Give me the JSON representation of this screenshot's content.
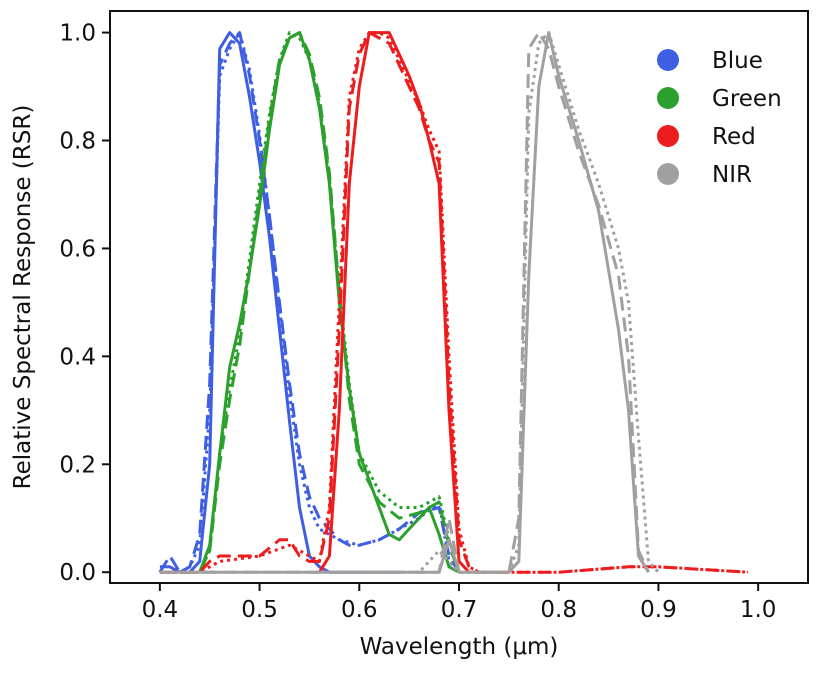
{
  "chart_data": {
    "type": "line",
    "title": "",
    "xlabel": "Wavelength (μm)",
    "ylabel": "Relative Spectral Response (RSR)",
    "xlim": [
      0.35,
      1.05
    ],
    "ylim": [
      -0.02,
      1.04
    ],
    "x_ticks": [
      {
        "value": 0.4,
        "label": "0.4"
      },
      {
        "value": 0.5,
        "label": "0.5"
      },
      {
        "value": 0.6,
        "label": "0.6"
      },
      {
        "value": 0.7,
        "label": "0.7"
      },
      {
        "value": 0.8,
        "label": "0.8"
      },
      {
        "value": 0.9,
        "label": "0.9"
      },
      {
        "value": 1.0,
        "label": "1.0"
      }
    ],
    "y_ticks": [
      {
        "value": 0.0,
        "label": "0.0"
      },
      {
        "value": 0.2,
        "label": "0.2"
      },
      {
        "value": 0.4,
        "label": "0.4"
      },
      {
        "value": 0.6,
        "label": "0.6"
      },
      {
        "value": 0.8,
        "label": "0.8"
      },
      {
        "value": 1.0,
        "label": "1.0"
      }
    ],
    "grid": false,
    "legend_position": "top-right",
    "legend": [
      {
        "label": "Blue",
        "color": "#3f5fe3"
      },
      {
        "label": "Green",
        "color": "#2ca02c"
      },
      {
        "label": "Red",
        "color": "#ee1d1d"
      },
      {
        "label": "NIR",
        "color": "#a0a0a0"
      }
    ],
    "series": [
      {
        "band": "Blue",
        "style": "solid",
        "color": "#3f5fe3",
        "x": [
          0.4,
          0.41,
          0.42,
          0.43,
          0.44,
          0.45,
          0.46,
          0.47,
          0.48,
          0.49,
          0.5,
          0.51,
          0.52,
          0.53,
          0.54,
          0.55,
          0.56,
          0.57,
          0.58,
          0.6,
          0.62,
          0.64
        ],
        "y": [
          0.01,
          0.01,
          0.0,
          0.0,
          0.02,
          0.2,
          0.97,
          1.0,
          0.98,
          0.88,
          0.76,
          0.62,
          0.45,
          0.28,
          0.12,
          0.03,
          0.01,
          0.0,
          0.0,
          0.0,
          0.0,
          0.0
        ]
      },
      {
        "band": "Blue",
        "style": "dashed",
        "color": "#3f5fe3",
        "x": [
          0.4,
          0.41,
          0.42,
          0.43,
          0.44,
          0.45,
          0.46,
          0.47,
          0.48,
          0.49,
          0.5,
          0.51,
          0.52,
          0.53,
          0.54,
          0.55,
          0.56,
          0.57,
          0.58,
          0.59,
          0.6,
          0.62,
          0.64,
          0.66,
          0.68,
          0.69,
          0.7
        ],
        "y": [
          0.0,
          0.03,
          0.0,
          0.01,
          0.07,
          0.35,
          0.94,
          0.98,
          1.0,
          0.92,
          0.8,
          0.66,
          0.5,
          0.35,
          0.22,
          0.14,
          0.1,
          0.08,
          0.06,
          0.05,
          0.05,
          0.06,
          0.08,
          0.11,
          0.12,
          0.03,
          0.0
        ]
      },
      {
        "band": "Blue",
        "style": "dotted",
        "color": "#3f5fe3",
        "x": [
          0.4,
          0.42,
          0.43,
          0.44,
          0.45,
          0.46,
          0.47,
          0.48,
          0.49,
          0.5,
          0.51,
          0.52,
          0.53,
          0.54,
          0.55,
          0.56,
          0.58,
          0.6,
          0.62,
          0.64,
          0.66,
          0.68,
          0.69,
          0.7
        ],
        "y": [
          0.0,
          0.0,
          0.01,
          0.05,
          0.3,
          0.92,
          0.97,
          1.0,
          0.93,
          0.81,
          0.66,
          0.49,
          0.33,
          0.2,
          0.12,
          0.08,
          0.06,
          0.05,
          0.06,
          0.08,
          0.1,
          0.13,
          0.02,
          0.0
        ]
      },
      {
        "band": "Green",
        "style": "solid",
        "color": "#2ca02c",
        "x": [
          0.44,
          0.45,
          0.46,
          0.47,
          0.48,
          0.49,
          0.5,
          0.51,
          0.52,
          0.53,
          0.54,
          0.55,
          0.56,
          0.57,
          0.58,
          0.59,
          0.6,
          0.61,
          0.62,
          0.63,
          0.64,
          0.65,
          0.66,
          0.67,
          0.68,
          0.69,
          0.7
        ],
        "y": [
          0.0,
          0.05,
          0.22,
          0.38,
          0.46,
          0.56,
          0.68,
          0.82,
          0.94,
          0.99,
          1.0,
          0.95,
          0.86,
          0.72,
          0.5,
          0.34,
          0.22,
          0.17,
          0.12,
          0.07,
          0.06,
          0.08,
          0.1,
          0.12,
          0.07,
          0.01,
          0.0
        ]
      },
      {
        "band": "Green",
        "style": "dashed",
        "color": "#2ca02c",
        "x": [
          0.44,
          0.45,
          0.46,
          0.47,
          0.48,
          0.49,
          0.5,
          0.51,
          0.52,
          0.53,
          0.54,
          0.55,
          0.56,
          0.57,
          0.58,
          0.59,
          0.6,
          0.62,
          0.64,
          0.66,
          0.68,
          0.69,
          0.7
        ],
        "y": [
          0.0,
          0.04,
          0.2,
          0.32,
          0.42,
          0.56,
          0.7,
          0.84,
          0.95,
          0.99,
          1.0,
          0.96,
          0.88,
          0.74,
          0.52,
          0.32,
          0.2,
          0.13,
          0.1,
          0.11,
          0.13,
          0.05,
          0.0
        ]
      },
      {
        "band": "Green",
        "style": "dotted",
        "color": "#2ca02c",
        "x": [
          0.44,
          0.45,
          0.46,
          0.47,
          0.48,
          0.49,
          0.5,
          0.51,
          0.52,
          0.53,
          0.54,
          0.55,
          0.56,
          0.57,
          0.58,
          0.59,
          0.6,
          0.62,
          0.64,
          0.66,
          0.68,
          0.69,
          0.7
        ],
        "y": [
          0.0,
          0.04,
          0.22,
          0.34,
          0.44,
          0.58,
          0.72,
          0.85,
          0.95,
          1.0,
          0.99,
          0.95,
          0.87,
          0.73,
          0.52,
          0.35,
          0.22,
          0.15,
          0.12,
          0.12,
          0.14,
          0.06,
          0.0
        ]
      },
      {
        "band": "Red",
        "style": "solid",
        "color": "#ee1d1d",
        "x": [
          0.56,
          0.57,
          0.58,
          0.59,
          0.6,
          0.61,
          0.62,
          0.63,
          0.64,
          0.65,
          0.66,
          0.67,
          0.68,
          0.69,
          0.7,
          0.71
        ],
        "y": [
          0.0,
          0.03,
          0.3,
          0.72,
          0.9,
          1.0,
          1.0,
          1.0,
          0.96,
          0.92,
          0.87,
          0.8,
          0.72,
          0.3,
          0.02,
          0.0
        ]
      },
      {
        "band": "Red",
        "style": "dashed",
        "color": "#ee1d1d",
        "x": [
          0.4,
          0.44,
          0.45,
          0.46,
          0.48,
          0.5,
          0.52,
          0.53,
          0.54,
          0.55,
          0.56,
          0.57,
          0.58,
          0.59,
          0.6,
          0.61,
          0.62,
          0.63,
          0.64,
          0.65,
          0.66,
          0.67,
          0.68,
          0.69,
          0.7,
          0.71,
          0.72,
          0.8,
          0.87,
          0.88,
          0.9,
          0.99
        ],
        "y": [
          0.0,
          0.0,
          0.02,
          0.03,
          0.03,
          0.03,
          0.06,
          0.06,
          0.03,
          0.02,
          0.02,
          0.1,
          0.45,
          0.86,
          0.96,
          1.0,
          0.99,
          0.98,
          0.94,
          0.9,
          0.86,
          0.8,
          0.76,
          0.35,
          0.06,
          0.01,
          0.0,
          0.0,
          0.01,
          0.01,
          0.01,
          0.0
        ]
      },
      {
        "band": "Red",
        "style": "dotted",
        "color": "#ee1d1d",
        "x": [
          0.4,
          0.44,
          0.46,
          0.5,
          0.53,
          0.56,
          0.57,
          0.58,
          0.59,
          0.6,
          0.61,
          0.62,
          0.63,
          0.64,
          0.65,
          0.66,
          0.67,
          0.68,
          0.69,
          0.7,
          0.71,
          0.72,
          0.8,
          0.87,
          0.9,
          0.99
        ],
        "y": [
          0.0,
          0.0,
          0.02,
          0.03,
          0.05,
          0.02,
          0.12,
          0.5,
          0.88,
          0.97,
          1.0,
          1.0,
          0.99,
          0.95,
          0.91,
          0.87,
          0.82,
          0.78,
          0.4,
          0.08,
          0.01,
          0.0,
          0.0,
          0.01,
          0.01,
          0.0
        ]
      },
      {
        "band": "NIR",
        "style": "solid",
        "color": "#a0a0a0",
        "x": [
          0.4,
          0.6,
          0.63,
          0.64,
          0.65,
          0.68,
          0.69,
          0.7,
          0.74,
          0.75,
          0.76,
          0.77,
          0.78,
          0.79,
          0.8,
          0.82,
          0.84,
          0.86,
          0.87,
          0.88,
          0.89
        ],
        "y": [
          0.0,
          0.0,
          0.0,
          0.0,
          0.0,
          0.0,
          0.06,
          0.0,
          0.0,
          0.0,
          0.02,
          0.55,
          0.9,
          1.0,
          0.92,
          0.8,
          0.67,
          0.45,
          0.3,
          0.03,
          0.0
        ]
      },
      {
        "band": "NIR",
        "style": "dashed",
        "color": "#a0a0a0",
        "x": [
          0.4,
          0.5,
          0.6,
          0.64,
          0.68,
          0.69,
          0.7,
          0.74,
          0.75,
          0.76,
          0.77,
          0.78,
          0.79,
          0.8,
          0.81,
          0.82,
          0.84,
          0.86,
          0.87,
          0.88,
          0.89
        ],
        "y": [
          0.0,
          0.0,
          0.0,
          0.0,
          0.0,
          0.1,
          0.0,
          0.0,
          0.0,
          0.1,
          0.97,
          1.0,
          0.97,
          0.9,
          0.84,
          0.78,
          0.68,
          0.55,
          0.4,
          0.04,
          0.0
        ]
      },
      {
        "band": "NIR",
        "style": "dotted",
        "color": "#a0a0a0",
        "x": [
          0.6,
          0.66,
          0.67,
          0.68,
          0.69,
          0.7,
          0.75,
          0.76,
          0.77,
          0.78,
          0.79,
          0.8,
          0.82,
          0.84,
          0.86,
          0.87,
          0.88,
          0.89,
          0.9
        ],
        "y": [
          0.0,
          0.0,
          0.02,
          0.04,
          0.02,
          0.0,
          0.0,
          0.05,
          0.85,
          0.98,
          1.0,
          0.94,
          0.82,
          0.72,
          0.6,
          0.5,
          0.25,
          0.02,
          0.0
        ]
      }
    ]
  }
}
